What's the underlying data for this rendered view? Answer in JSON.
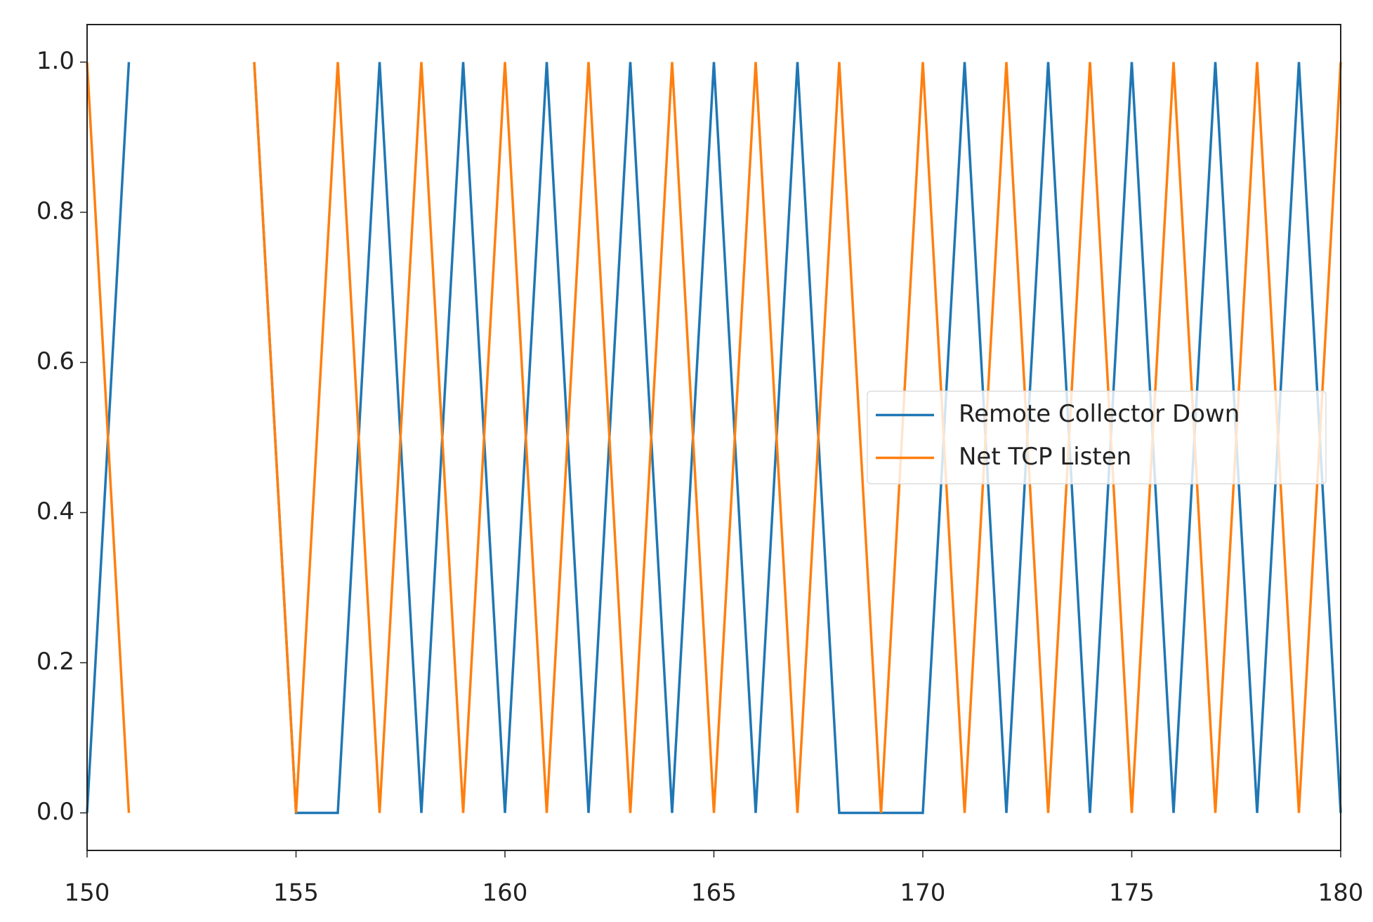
{
  "chart_data": {
    "type": "line",
    "x": [
      150,
      151,
      152,
      153,
      154,
      155,
      156,
      157,
      158,
      159,
      160,
      161,
      162,
      163,
      164,
      165,
      166,
      167,
      168,
      169,
      170,
      171,
      172,
      173,
      174,
      175,
      176,
      177,
      178,
      179,
      180
    ],
    "series": [
      {
        "name": "Remote Collector Down",
        "color": "#1f77b4",
        "values": [
          0,
          1,
          null,
          null,
          1,
          0,
          0,
          1,
          0,
          1,
          0,
          1,
          0,
          1,
          0,
          1,
          0,
          1,
          0,
          0,
          0,
          1,
          0,
          1,
          0,
          1,
          0,
          1,
          0,
          1,
          0
        ]
      },
      {
        "name": "Net TCP Listen",
        "color": "#ff7f0e",
        "values": [
          1,
          0,
          null,
          null,
          1,
          0,
          1,
          0,
          1,
          0,
          1,
          0,
          1,
          0,
          1,
          0,
          1,
          0,
          1,
          0,
          1,
          0,
          1,
          0,
          1,
          0,
          1,
          0,
          1,
          0,
          1
        ]
      }
    ],
    "xlim": [
      150,
      180
    ],
    "xticks": [
      150,
      155,
      160,
      165,
      170,
      175,
      180
    ],
    "ylim": [
      -0.05,
      1.05
    ],
    "yticks": [
      {
        "value": 0,
        "label": "0.0"
      },
      {
        "value": 0.2,
        "label": "0.2"
      },
      {
        "value": 0.4,
        "label": "0.4"
      },
      {
        "value": 0.6,
        "label": "0.6"
      },
      {
        "value": 0.8,
        "label": "0.8"
      },
      {
        "value": 1,
        "label": "1.0"
      }
    ],
    "legend": "center right"
  }
}
